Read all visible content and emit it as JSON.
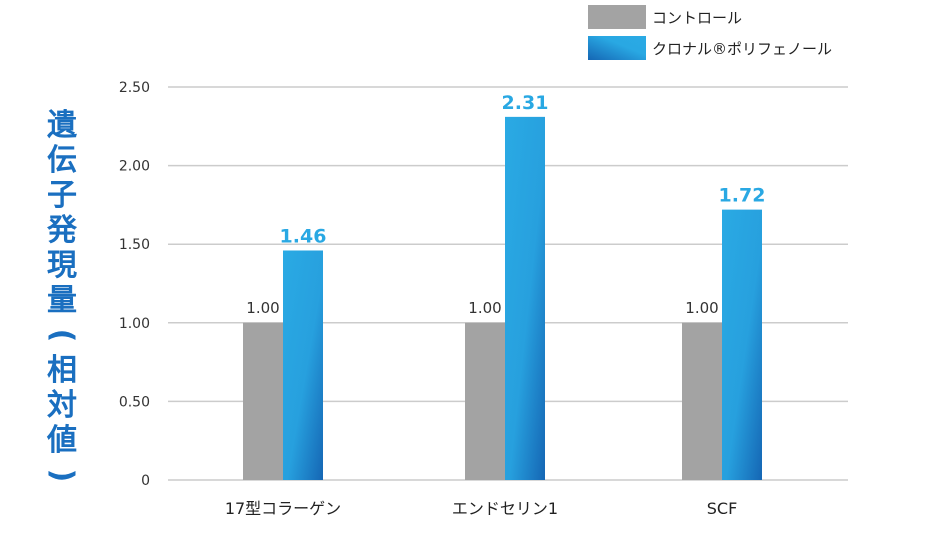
{
  "chart_data": {
    "type": "bar",
    "title": "",
    "ylabel": "遺伝子発現量(相対値)",
    "xlabel": "",
    "categories": [
      "17型コラーゲン",
      "エンドセリン1",
      "SCF"
    ],
    "series": [
      {
        "name": "コントロール",
        "values": [
          1.0,
          1.0,
          1.0
        ],
        "labels": [
          "1.00",
          "1.00",
          "1.00"
        ],
        "color": "#a3a3a3"
      },
      {
        "name": "クロナル®ポリフェノール",
        "values": [
          1.46,
          2.31,
          1.72
        ],
        "labels": [
          "1.46",
          "2.31",
          "1.72"
        ],
        "color": "#29a8e3"
      }
    ],
    "ylim": [
      0,
      2.5
    ],
    "yticks": [
      "0",
      "0.50",
      "1.00",
      "1.50",
      "2.00",
      "2.50"
    ],
    "grid": true,
    "legend_position": "top-right"
  },
  "colors": {
    "control": "#a3a3a3",
    "treatment_light": "#2aaae4",
    "treatment_dark": "#1566b4",
    "label_blue": "#29a8e3",
    "axis_title_blue": "#1a6fc0",
    "grid": "#cccccc",
    "text": "#333333"
  }
}
